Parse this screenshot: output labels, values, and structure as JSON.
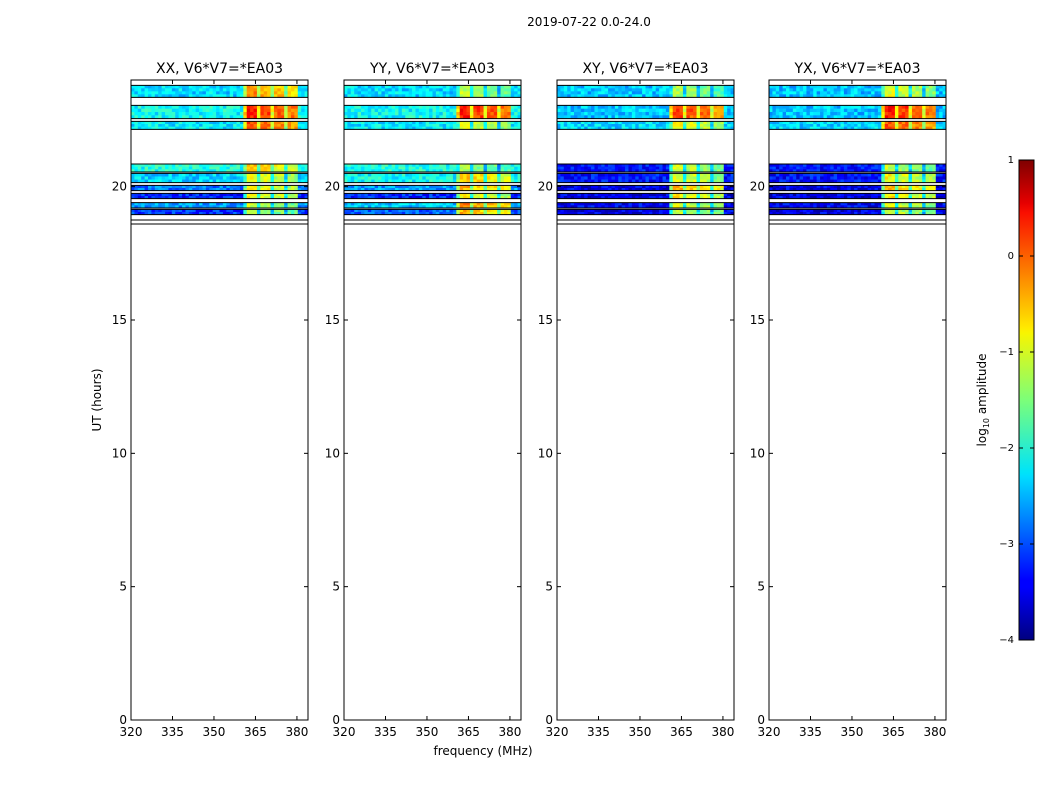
{
  "suptitle": "2019-07-22 0.0-24.0",
  "xlabel": "frequency (MHz)",
  "ylabel": "UT (hours)",
  "colorbar": {
    "label_main": "log",
    "label_sub": "10",
    "label_rest": " amplitude",
    "ticks": [
      "1",
      "0",
      "−1",
      "−2",
      "−3",
      "−4"
    ],
    "tick_values": [
      1,
      0,
      -1,
      -2,
      -3,
      -4
    ],
    "range": [
      -4,
      1
    ],
    "colormap": "jet"
  },
  "chart_data": {
    "type": "heatmap",
    "title": "2019-07-22 0.0-24.0",
    "xlabel": "frequency (MHz)",
    "ylabel": "UT (hours)",
    "xlim": [
      320,
      384
    ],
    "ylim": [
      0,
      24
    ],
    "xticks": [
      320,
      335,
      350,
      365,
      380
    ],
    "xtick_labels": [
      "320",
      "335",
      "350",
      "365",
      "380"
    ],
    "yticks": [
      0,
      5,
      10,
      15,
      20
    ],
    "ytick_labels": [
      "0",
      "5",
      "10",
      "15",
      "20"
    ],
    "colorbar_label": "log10 amplitude",
    "zlim": [
      -4,
      1
    ],
    "bright_band_mhz": [
      361,
      380
    ],
    "panels": [
      {
        "title": "XX, V6*V7=*EA03",
        "rows": [
          {
            "t0": 23.35,
            "t1": 23.8,
            "base": -2.3,
            "band": -0.3
          },
          {
            "t0": 22.55,
            "t1": 23.05,
            "base": -2.1,
            "band": 0.25
          },
          {
            "t0": 22.15,
            "t1": 22.45,
            "base": -2.2,
            "band": 0.0
          },
          {
            "t0": 20.55,
            "t1": 20.85,
            "base": -2.0,
            "band": -0.6
          },
          {
            "t0": 20.15,
            "t1": 20.5,
            "base": -2.3,
            "band": -0.9
          },
          {
            "t0": 19.85,
            "t1": 20.05,
            "base": -2.8,
            "band": -0.8
          },
          {
            "t0": 19.55,
            "t1": 19.75,
            "base": -3.2,
            "band": -0.9
          },
          {
            "t0": 19.2,
            "t1": 19.4,
            "base": -2.6,
            "band": -1.1
          },
          {
            "t0": 18.95,
            "t1": 19.15,
            "base": -3.1,
            "band": -1.2
          }
        ]
      },
      {
        "title": "YY, V6*V7=*EA03",
        "rows": [
          {
            "t0": 23.35,
            "t1": 23.8,
            "base": -2.3,
            "band": -1.2
          },
          {
            "t0": 22.55,
            "t1": 23.05,
            "base": -2.1,
            "band": 0.25
          },
          {
            "t0": 22.15,
            "t1": 22.45,
            "base": -2.2,
            "band": -1.0
          },
          {
            "t0": 20.55,
            "t1": 20.85,
            "base": -2.0,
            "band": -1.3
          },
          {
            "t0": 20.15,
            "t1": 20.5,
            "base": -2.1,
            "band": -0.6
          },
          {
            "t0": 19.85,
            "t1": 20.05,
            "base": -2.6,
            "band": -0.5
          },
          {
            "t0": 19.55,
            "t1": 19.75,
            "base": -3.2,
            "band": -0.9
          },
          {
            "t0": 19.2,
            "t1": 19.4,
            "base": -2.4,
            "band": -0.3
          },
          {
            "t0": 18.95,
            "t1": 19.15,
            "base": -2.9,
            "band": -0.5
          }
        ]
      },
      {
        "title": "XY, V6*V7=*EA03",
        "rows": [
          {
            "t0": 23.35,
            "t1": 23.8,
            "base": -2.4,
            "band": -1.3
          },
          {
            "t0": 22.55,
            "t1": 23.05,
            "base": -2.4,
            "band": 0.1
          },
          {
            "t0": 22.15,
            "t1": 22.45,
            "base": -2.3,
            "band": -0.9
          },
          {
            "t0": 20.55,
            "t1": 20.85,
            "base": -3.3,
            "band": -1.1
          },
          {
            "t0": 20.15,
            "t1": 20.5,
            "base": -3.3,
            "band": -1.0
          },
          {
            "t0": 19.85,
            "t1": 20.05,
            "base": -3.5,
            "band": -0.5
          },
          {
            "t0": 19.55,
            "t1": 19.75,
            "base": -3.5,
            "band": -0.8
          },
          {
            "t0": 19.2,
            "t1": 19.4,
            "base": -3.4,
            "band": -1.0
          },
          {
            "t0": 18.95,
            "t1": 19.15,
            "base": -3.5,
            "band": -1.1
          }
        ]
      },
      {
        "title": "YX, V6*V7=*EA03",
        "rows": [
          {
            "t0": 23.35,
            "t1": 23.8,
            "base": -2.4,
            "band": -1.0
          },
          {
            "t0": 22.55,
            "t1": 23.05,
            "base": -2.4,
            "band": 0.25
          },
          {
            "t0": 22.15,
            "t1": 22.45,
            "base": -2.3,
            "band": 0.0
          },
          {
            "t0": 20.55,
            "t1": 20.85,
            "base": -3.3,
            "band": -1.2
          },
          {
            "t0": 20.15,
            "t1": 20.5,
            "base": -3.3,
            "band": -0.9
          },
          {
            "t0": 19.85,
            "t1": 20.05,
            "base": -3.5,
            "band": -0.6
          },
          {
            "t0": 19.55,
            "t1": 19.75,
            "base": -3.5,
            "band": -0.8
          },
          {
            "t0": 19.2,
            "t1": 19.4,
            "base": -3.4,
            "band": -1.0
          },
          {
            "t0": 18.95,
            "t1": 19.15,
            "base": -3.5,
            "band": -1.1
          }
        ]
      }
    ]
  }
}
